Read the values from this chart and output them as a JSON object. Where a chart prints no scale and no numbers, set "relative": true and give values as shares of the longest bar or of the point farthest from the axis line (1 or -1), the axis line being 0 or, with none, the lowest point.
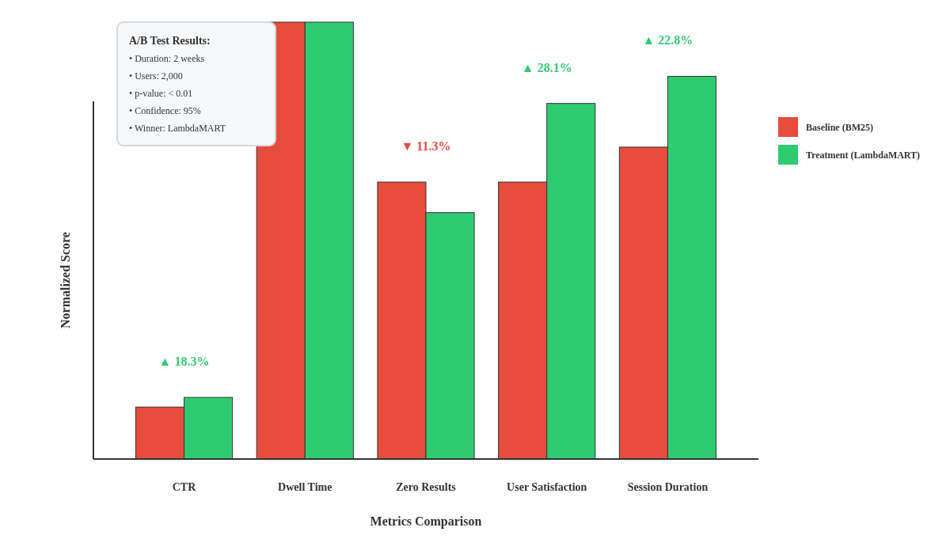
{
  "chart_data": {
    "type": "bar",
    "relative": true,
    "xlabel": "Metrics Comparison",
    "ylabel": "Normalized Score",
    "legend": "right",
    "categories": [
      "CTR",
      "Dwell Time",
      "Zero Results",
      "User Satisfaction",
      "Session Duration"
    ],
    "series": [
      {
        "name": "Baseline (BM25)",
        "color": "#e74c3c",
        "values": [
          0.119,
          1,
          0.634,
          0.634,
          0.714
        ]
      },
      {
        "name": "Treatment (LambdaMART)",
        "color": "#2ecc71",
        "values": [
          0.141,
          1,
          0.564,
          0.814,
          0.876
        ]
      }
    ],
    "annotations": [
      "▲ 18.3%",
      "▼ 11.3%",
      "▲ 28.1%",
      "▲ 22.8%",
      "A/B Test Results:",
      "• Duration: 2 weeks",
      "• Users: 2,000",
      "• p-value: < 0.01",
      "• Confidence: 95%",
      "• Winner: LambdaMART"
    ]
  }
}
